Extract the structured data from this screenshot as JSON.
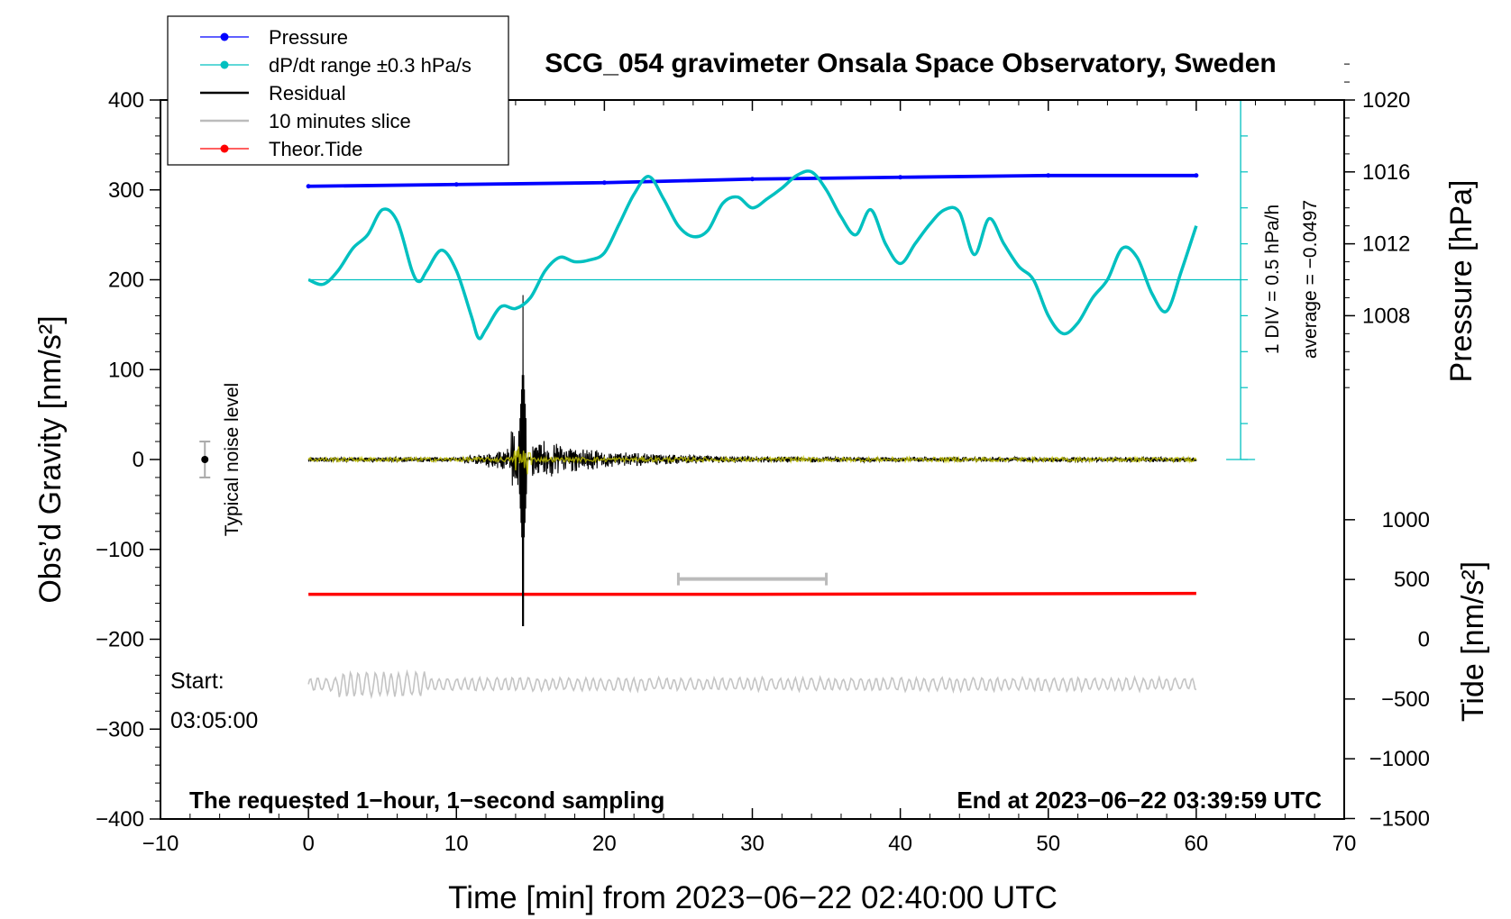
{
  "chart_data": {
    "type": "line",
    "title": "SCG_054 gravimeter Onsala Space Observatory, Sweden",
    "xlabel": "Time [min] from 2023−06−22 02:40:00 UTC",
    "ylabel": "Obs’d Gravity [nm/s²]",
    "ylabel_right_pressure": "Pressure [hPa]",
    "ylabel_right_tide": "Tide [nm/s²]",
    "xlim": [
      -10,
      70
    ],
    "ylim": [
      -400,
      400
    ],
    "x_ticks": [
      -10,
      0,
      10,
      20,
      30,
      40,
      50,
      60,
      70
    ],
    "x_tick_labels": [
      "−10",
      "0",
      "10",
      "20",
      "30",
      "40",
      "50",
      "60",
      "70"
    ],
    "y_ticks": [
      400,
      300,
      200,
      100,
      0,
      -100,
      -200,
      -300,
      -400
    ],
    "y_tick_labels": [
      "400",
      "300",
      "200",
      "100",
      "0",
      "−100",
      "−200",
      "−300",
      "−400"
    ],
    "pressure_axis": {
      "ticks": [
        1020,
        1016,
        1012,
        1008
      ],
      "tick_labels": [
        "1020",
        "1016",
        "1012",
        "1008"
      ],
      "gravity_at_1000": 0,
      "gravity_per_hpa": 20
    },
    "tide_axis": {
      "ticks": [
        1000,
        500,
        0,
        -500,
        -1000,
        -1500
      ],
      "tick_labels": [
        "1000",
        "500",
        "0",
        "−500",
        "−1000",
        "−1500"
      ],
      "gravity_at_zero": -200,
      "gravity_per_unit": 0.133
    },
    "legend": {
      "position": "top-left",
      "entries": [
        {
          "label": "Pressure",
          "color": "#0000ff",
          "marker": "dot"
        },
        {
          "label": "dP/dt range ±0.3 hPa/s",
          "color": "#00c0c0",
          "marker": "dot"
        },
        {
          "label": "Residual",
          "color": "#000000",
          "marker": "line"
        },
        {
          "label": "10 minutes slice",
          "color": "#bbbbbb",
          "marker": "line"
        },
        {
          "label": "Theor.Tide",
          "color": "#ff0000",
          "marker": "dot"
        }
      ]
    },
    "series": [
      {
        "name": "Pressure",
        "color": "#0000ff",
        "unit": "hPa",
        "x": [
          0,
          10,
          20,
          30,
          40,
          50,
          60
        ],
        "values": [
          1015.2,
          1015.3,
          1015.4,
          1015.6,
          1015.7,
          1015.8,
          1015.8
        ]
      },
      {
        "name": "dP/dt",
        "color": "#00c0c0",
        "unit": "nm/s² (plot scale)",
        "x": [
          0,
          1,
          2,
          3,
          4,
          5,
          6,
          7,
          7.5,
          8,
          9,
          10,
          11,
          11.5,
          12,
          13,
          14,
          15,
          16,
          17,
          18,
          19,
          20,
          21,
          22,
          23,
          24,
          25,
          26,
          27,
          28,
          29,
          30,
          31,
          32,
          33,
          34,
          35,
          36,
          37,
          38,
          39,
          40,
          41,
          42,
          43,
          44,
          45,
          46,
          47,
          48,
          49,
          50,
          51,
          52,
          53,
          54,
          55,
          56,
          57,
          58,
          59,
          60
        ],
        "values": [
          200,
          195,
          210,
          235,
          250,
          278,
          265,
          210,
          198,
          210,
          233,
          210,
          160,
          135,
          145,
          170,
          168,
          180,
          210,
          225,
          220,
          222,
          230,
          262,
          295,
          315,
          290,
          260,
          248,
          255,
          285,
          292,
          280,
          290,
          302,
          316,
          320,
          300,
          270,
          250,
          278,
          240,
          218,
          240,
          262,
          278,
          275,
          228,
          268,
          240,
          215,
          200,
          160,
          140,
          152,
          180,
          200,
          235,
          225,
          185,
          165,
          210,
          260
        ]
      },
      {
        "name": "Residual",
        "color": "#000000",
        "x_range": [
          0,
          60
        ],
        "peak": {
          "x": 14.5,
          "min": -185,
          "max": 183
        },
        "note": "earthquake arrival ~14.5 min"
      },
      {
        "name": "Theor.Tide",
        "color": "#ff0000",
        "x": [
          0,
          30,
          60
        ],
        "values": [
          -150,
          -150,
          -149
        ]
      },
      {
        "name": "10 minutes slice",
        "color": "#bbbbbb",
        "x_range": [
          0,
          60
        ],
        "offset": -250
      }
    ],
    "slice_bar": {
      "x_start": 25,
      "x_end": 35,
      "y": -133
    },
    "noise_marker": {
      "x": -7,
      "y": 0,
      "err": 20,
      "label": "Typical noise level"
    },
    "pressure_scale_bar": {
      "label": "1 DIV = 0.5 hPa/h",
      "average": "average = −0.0497",
      "x": 63,
      "y_bottom": 0,
      "y_top": 400,
      "ref_y": 200
    },
    "annotations": {
      "start_label": "Start:",
      "start_time": "03:05:00",
      "bottom_left": "The requested 1−hour, 1−second sampling",
      "bottom_right": "End at 2023−06−22 03:39:59 UTC"
    }
  }
}
